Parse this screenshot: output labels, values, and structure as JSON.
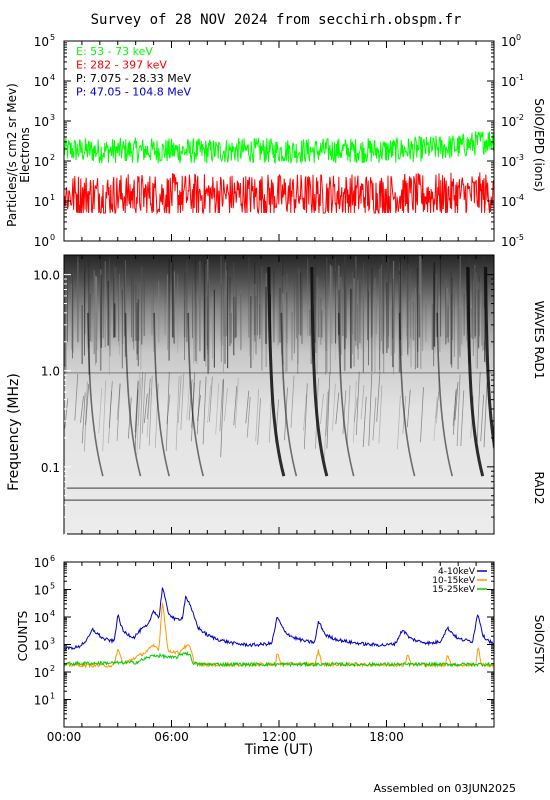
{
  "title": "Survey of 28 NOV 2024 from secchirh.obspm.fr",
  "footer": "Assembled on 03JUN2025",
  "chart_data": [
    {
      "type": "line",
      "panel": "electrons",
      "ylabel_left": "Particles/(s cm2 sr Mev)",
      "ylabel_left2": "Electrons",
      "ylabel_right": "SolO/EPD (ions)",
      "yscale": "log",
      "ylim": [
        1,
        100000
      ],
      "yticks": [
        "10",
        "10",
        "10",
        "10",
        "10",
        "10"
      ],
      "ytick_exp": [
        "0",
        "1",
        "2",
        "3",
        "4",
        "5"
      ],
      "y2lim": [
        1e-05,
        1
      ],
      "y2ticks": [
        "10",
        "10",
        "10",
        "10",
        "10",
        "10"
      ],
      "y2tick_exp": [
        "-5",
        "-4",
        "-3",
        "-2",
        "-1",
        "0"
      ],
      "xlim": [
        0,
        24
      ],
      "legend": [
        {
          "label": "E: 53 - 73 keV",
          "color": "#00ff00"
        },
        {
          "label": "E: 282 - 397 keV",
          "color": "#ff0000"
        },
        {
          "label": "P: 7.075 - 28.33 MeV",
          "color": "#000000"
        },
        {
          "label": "P: 47.05 - 104.8 MeV",
          "color": "#0000cc"
        }
      ],
      "series": [
        {
          "name": "E: 53 - 73 keV",
          "color": "#00ff00",
          "x": [
            0,
            2,
            4,
            6,
            8,
            10,
            12,
            14,
            16,
            18,
            20,
            22,
            23,
            24
          ],
          "y": [
            190,
            180,
            185,
            180,
            175,
            185,
            180,
            180,
            185,
            180,
            200,
            230,
            280,
            350
          ]
        },
        {
          "name": "E: 282 - 397 keV",
          "color": "#ff0000",
          "x": [
            0,
            4,
            8,
            12,
            16,
            20,
            24
          ],
          "y": [
            14,
            14,
            14,
            14,
            14,
            14,
            15
          ]
        }
      ]
    },
    {
      "type": "heatmap",
      "panel": "waves",
      "ylabel_left": "Frequency (MHz)",
      "ylabel_right_top": "WAVES RAD1",
      "ylabel_right_bottom": "RAD2",
      "yscale": "log",
      "ylim": [
        0.02,
        16
      ],
      "yticks": [
        "0.1",
        "1.0",
        "10.0"
      ],
      "ytick_values": [
        0.1,
        1.0,
        10.0
      ],
      "xlim": [
        0,
        24
      ],
      "bursts_utc_hours": [
        1.5,
        3.6,
        5.2,
        7.1,
        11.6,
        12.3,
        14.0,
        15.5,
        18.9,
        21.0,
        22.7,
        23.7
      ]
    },
    {
      "type": "line",
      "panel": "stix",
      "ylabel_left": "COUNTS",
      "ylabel_right": "SolO/STIX",
      "xlabel": "Time (UT)",
      "yscale": "log",
      "ylim": [
        1,
        1000000
      ],
      "yticks": [
        "10",
        "10",
        "10",
        "10",
        "10",
        "10"
      ],
      "ytick_exp": [
        "1",
        "2",
        "3",
        "4",
        "5",
        "6"
      ],
      "xlim": [
        0,
        24
      ],
      "xticks": [
        "00:00",
        "06:00",
        "12:00",
        "18:00"
      ],
      "xtick_values": [
        0,
        6,
        12,
        18
      ],
      "legend": [
        {
          "label": "4-10keV",
          "color": "#0000cc"
        },
        {
          "label": "10-15keV",
          "color": "#ff9900"
        },
        {
          "label": "15-25keV",
          "color": "#00cc00"
        }
      ],
      "series": [
        {
          "name": "4-10keV",
          "color": "#0000cc",
          "x": [
            0,
            0.8,
            1.3,
            1.6,
            2.2,
            2.8,
            3.0,
            3.3,
            3.5,
            3.9,
            4.3,
            4.7,
            5.0,
            5.3,
            5.5,
            5.8,
            6.2,
            6.6,
            6.8,
            7.1,
            7.5,
            8.0,
            8.5,
            9.0,
            9.5,
            10.0,
            10.5,
            11.0,
            11.6,
            11.9,
            12.3,
            12.8,
            13.5,
            14.0,
            14.2,
            14.6,
            15.1,
            15.5,
            16.0,
            17.0,
            18.0,
            18.5,
            18.9,
            19.3,
            19.8,
            20.5,
            21.0,
            21.4,
            22.0,
            22.5,
            22.8,
            23.1,
            23.4,
            24.0
          ],
          "y": [
            700,
            800,
            1500,
            3500,
            1600,
            1300,
            12000,
            3000,
            2500,
            1800,
            3500,
            5000,
            18000,
            9000,
            130000,
            15000,
            8000,
            9000,
            60000,
            20000,
            4000,
            2200,
            1600,
            1300,
            1100,
            1000,
            950,
            1000,
            1100,
            10000,
            3000,
            1800,
            1300,
            1200,
            7000,
            2200,
            1600,
            1400,
            1200,
            1000,
            950,
            1100,
            3500,
            1700,
            1300,
            1100,
            1300,
            4000,
            1600,
            1400,
            1300,
            14000,
            2000,
            1000
          ]
        },
        {
          "name": "10-15keV",
          "color": "#ff9900",
          "x": [
            0,
            2.5,
            2.8,
            3.0,
            3.3,
            4.5,
            5.0,
            5.3,
            5.5,
            5.8,
            6.4,
            6.7,
            7.0,
            7.3,
            8.0,
            11.8,
            11.9,
            12.1,
            14.0,
            14.2,
            14.4,
            19.0,
            19.2,
            19.4,
            21.3,
            21.4,
            21.6,
            23.0,
            23.1,
            23.3,
            24.0
          ],
          "y": [
            180,
            170,
            170,
            700,
            200,
            500,
            900,
            700,
            40000,
            600,
            500,
            800,
            900,
            200,
            180,
            190,
            500,
            200,
            190,
            600,
            190,
            180,
            450,
            180,
            180,
            500,
            180,
            180,
            900,
            190,
            170
          ]
        },
        {
          "name": "15-25keV",
          "color": "#00cc00",
          "x": [
            0,
            2,
            4,
            4.5,
            5.0,
            5.5,
            6.0,
            6.3,
            6.7,
            7.0,
            7.2,
            7.5,
            8,
            12,
            16,
            20,
            24
          ],
          "y": [
            200,
            210,
            220,
            300,
            400,
            380,
            330,
            350,
            500,
            450,
            220,
            190,
            190,
            190,
            190,
            190,
            190
          ]
        }
      ]
    }
  ]
}
